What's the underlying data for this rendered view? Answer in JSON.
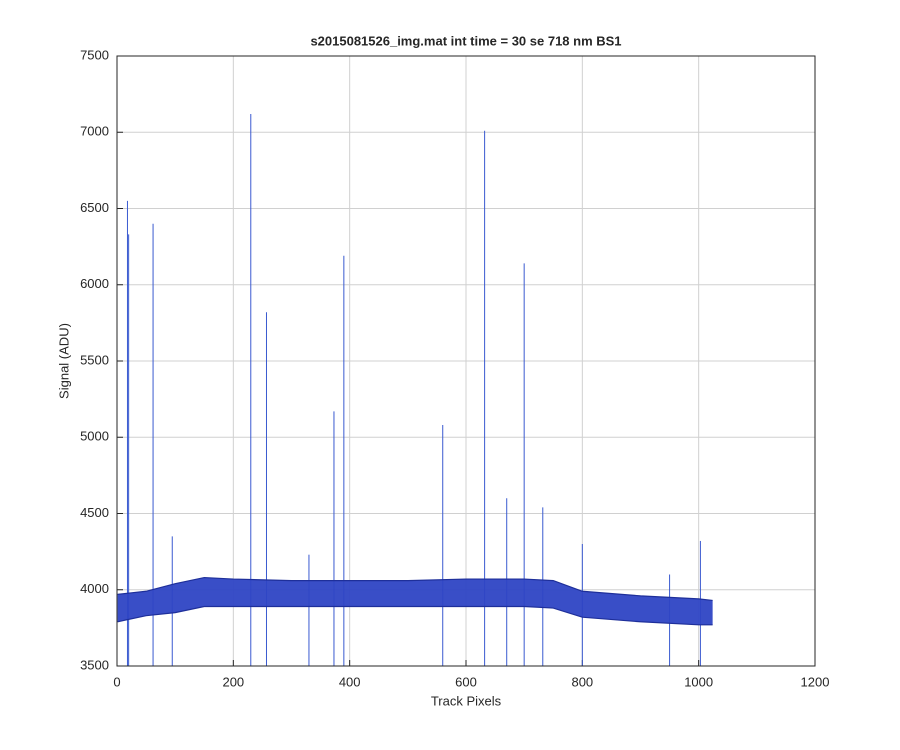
{
  "chart_data": {
    "type": "line",
    "title": "s2015081526_img.mat int time = 30 se  718 nm BS1",
    "xlabel": "Track Pixels",
    "ylabel": "Signal (ADU)",
    "xlim": [
      0,
      1200
    ],
    "ylim": [
      3500,
      7500
    ],
    "xticks": [
      0,
      200,
      400,
      600,
      800,
      1000,
      1200
    ],
    "yticks": [
      3500,
      4000,
      4500,
      5000,
      5500,
      6000,
      6500,
      7000,
      7500
    ],
    "grid": true,
    "series": [
      {
        "style": "band",
        "color": "#2e44c4",
        "x": [
          1,
          50,
          100,
          150,
          200,
          300,
          400,
          500,
          600,
          700,
          750,
          800,
          900,
          1000,
          1024
        ],
        "values": [
          3970,
          3990,
          4040,
          4080,
          4070,
          4060,
          4060,
          4060,
          4070,
          4070,
          4060,
          3990,
          3960,
          3940,
          3930
        ]
      },
      {
        "style": "band",
        "color": "#2e44c4",
        "x": [
          1,
          50,
          100,
          150,
          200,
          300,
          400,
          500,
          600,
          700,
          750,
          800,
          900,
          1000,
          1024
        ],
        "values": [
          3790,
          3830,
          3850,
          3890,
          3890,
          3890,
          3890,
          3890,
          3890,
          3890,
          3880,
          3820,
          3790,
          3770,
          3770
        ]
      },
      {
        "style": "stem",
        "color": "#3a5ad0",
        "x": [
          18,
          20,
          62,
          95,
          230,
          257,
          330,
          373,
          390,
          560,
          632,
          670,
          700,
          732,
          800,
          950,
          1003
        ],
        "values": [
          6550,
          6330,
          6400,
          4350,
          7120,
          5820,
          4230,
          5170,
          6190,
          5080,
          7010,
          4600,
          6140,
          4540,
          4300,
          4100,
          4320
        ]
      }
    ]
  }
}
